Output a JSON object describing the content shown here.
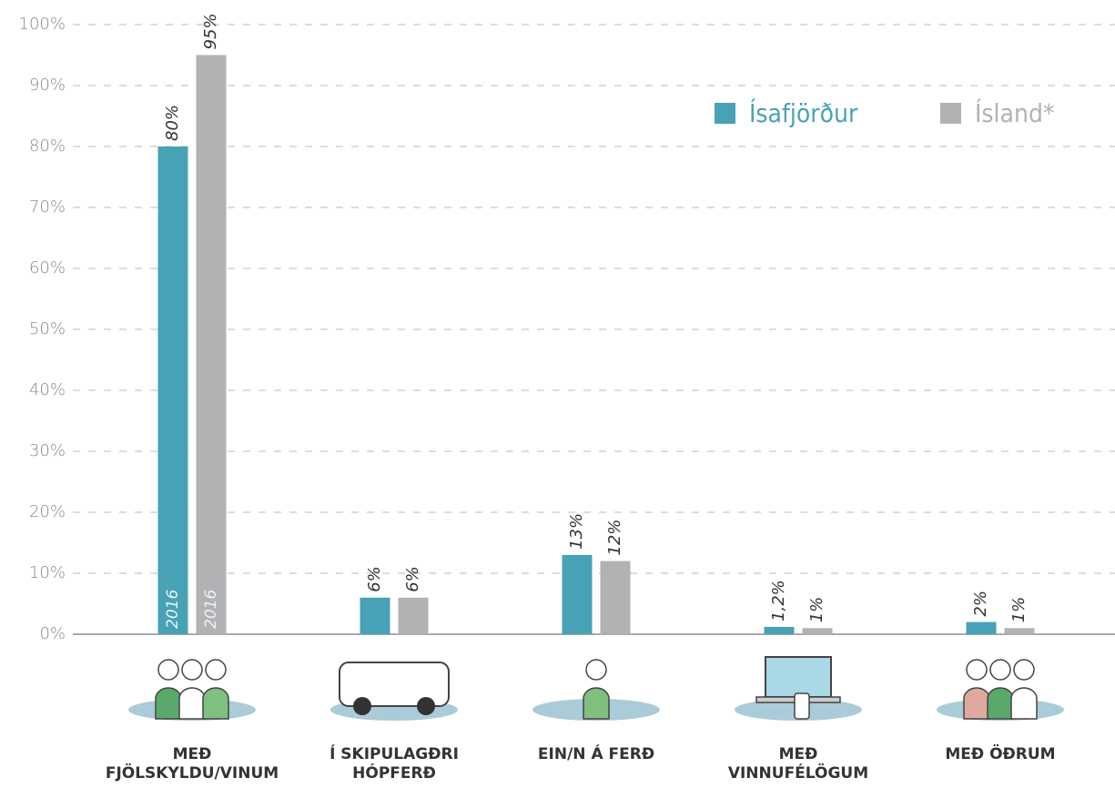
{
  "chart_data": {
    "type": "bar",
    "categories": [
      "MEÐ\nFJÖLSKYLDU/VINUM",
      "Í SKIPULAGÐRI\nHÓPFERÐ",
      "EIN/N Á FERÐ",
      "MEÐ\nVINNUFÉLÖGUM",
      "MEÐ ÖÐRUM"
    ],
    "series": [
      {
        "name": "Ísafjörður",
        "color": "#48a2b6",
        "values": [
          80,
          6,
          13,
          1.2,
          2
        ],
        "value_labels": [
          "80%",
          "6%",
          "13%",
          "1,2%",
          "2%"
        ]
      },
      {
        "name": "Ísland*",
        "color": "#b2b2b4",
        "values": [
          95,
          6,
          12,
          1,
          1
        ],
        "value_labels": [
          "95%",
          "6%",
          "12%",
          "1%",
          "1%"
        ]
      }
    ],
    "annotations": [
      "2016",
      "2016"
    ],
    "ylim": [
      0,
      100
    ],
    "yticks": [
      {
        "value": 0,
        "label": "0%"
      },
      {
        "value": 10,
        "label": "10%"
      },
      {
        "value": 20,
        "label": "20%"
      },
      {
        "value": 30,
        "label": "30%"
      },
      {
        "value": 40,
        "label": "40%"
      },
      {
        "value": 50,
        "label": "50%"
      },
      {
        "value": 60,
        "label": "60%"
      },
      {
        "value": 70,
        "label": "70%"
      },
      {
        "value": 80,
        "label": "80%"
      },
      {
        "value": 90,
        "label": "90%"
      },
      {
        "value": 100,
        "label": "100%"
      }
    ],
    "grid": true,
    "legend": "top-right"
  }
}
